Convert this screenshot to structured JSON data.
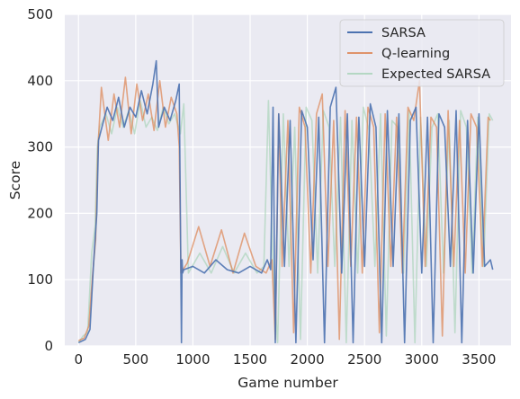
{
  "chart_data": {
    "type": "line",
    "title": "",
    "xlabel": "Game number",
    "ylabel": "Score",
    "xlim": [
      -120,
      3780
    ],
    "ylim": [
      0,
      500
    ],
    "xticks": [
      0,
      500,
      1000,
      1500,
      2000,
      2500,
      3000,
      3500
    ],
    "yticks": [
      0,
      100,
      200,
      300,
      400,
      500
    ],
    "grid": true,
    "legend_position": "top-right",
    "background": "#eaeaf2",
    "series": [
      {
        "name": "SARSA",
        "color": "#4c72b0",
        "opacity": 0.9,
        "x": [
          0,
          60,
          100,
          130,
          160,
          175,
          190,
          250,
          300,
          350,
          400,
          450,
          500,
          550,
          600,
          650,
          680,
          700,
          750,
          800,
          850,
          880,
          900,
          905,
          910,
          920,
          1000,
          1100,
          1200,
          1300,
          1400,
          1500,
          1600,
          1650,
          1680,
          1700,
          1720,
          1750,
          1800,
          1850,
          1900,
          1950,
          2000,
          2050,
          2100,
          2150,
          2200,
          2250,
          2300,
          2350,
          2400,
          2450,
          2500,
          2550,
          2600,
          2650,
          2700,
          2750,
          2800,
          2850,
          2900,
          2950,
          3000,
          3050,
          3100,
          3150,
          3200,
          3250,
          3300,
          3350,
          3400,
          3450,
          3500,
          3550,
          3600,
          3620
        ],
        "values": [
          5,
          10,
          25,
          120,
          200,
          310,
          320,
          360,
          340,
          375,
          330,
          360,
          345,
          385,
          350,
          395,
          430,
          330,
          360,
          340,
          370,
          395,
          5,
          130,
          110,
          115,
          120,
          110,
          130,
          115,
          110,
          120,
          110,
          130,
          115,
          360,
          5,
          350,
          120,
          340,
          5,
          355,
          330,
          130,
          345,
          5,
          360,
          390,
          110,
          350,
          5,
          345,
          120,
          365,
          330,
          5,
          355,
          120,
          350,
          5,
          340,
          360,
          110,
          345,
          5,
          350,
          330,
          120,
          355,
          5,
          340,
          110,
          350,
          120,
          130,
          115
        ]
      },
      {
        "name": "Q-learning",
        "color": "#dd8452",
        "opacity": 0.7,
        "x": [
          0,
          50,
          90,
          120,
          150,
          170,
          200,
          260,
          310,
          360,
          410,
          460,
          510,
          560,
          610,
          660,
          710,
          760,
          810,
          860,
          880,
          895,
          950,
          1050,
          1150,
          1250,
          1350,
          1450,
          1550,
          1640,
          1690,
          1720,
          1750,
          1780,
          1830,
          1880,
          1930,
          1980,
          2030,
          2080,
          2130,
          2180,
          2230,
          2280,
          2330,
          2380,
          2430,
          2480,
          2530,
          2580,
          2630,
          2680,
          2730,
          2780,
          2830,
          2880,
          2930,
          2980,
          3030,
          3080,
          3130,
          3180,
          3230,
          3280,
          3330,
          3380,
          3430,
          3480,
          3530,
          3580,
          3600
        ],
        "values": [
          8,
          12,
          30,
          100,
          160,
          300,
          390,
          310,
          380,
          330,
          405,
          320,
          395,
          340,
          380,
          325,
          400,
          330,
          375,
          350,
          300,
          110,
          125,
          180,
          120,
          175,
          110,
          170,
          120,
          110,
          130,
          10,
          350,
          120,
          340,
          20,
          360,
          330,
          110,
          350,
          380,
          120,
          340,
          10,
          355,
          120,
          345,
          110,
          360,
          330,
          20,
          350,
          120,
          345,
          110,
          360,
          340,
          400,
          120,
          345,
          330,
          15,
          355,
          120,
          340,
          110,
          350,
          330,
          120,
          345,
          340
        ]
      },
      {
        "name": "Expected SARSA",
        "color": "#a6d2b6",
        "opacity": 0.65,
        "x": [
          0,
          40,
          80,
          115,
          145,
          165,
          185,
          240,
          290,
          340,
          390,
          440,
          490,
          540,
          590,
          640,
          690,
          740,
          790,
          840,
          890,
          920,
          960,
          1060,
          1160,
          1260,
          1360,
          1460,
          1560,
          1620,
          1660,
          1700,
          1740,
          1790,
          1840,
          1890,
          1940,
          1990,
          2040,
          2090,
          2140,
          2190,
          2240,
          2290,
          2340,
          2390,
          2440,
          2490,
          2540,
          2590,
          2640,
          2690,
          2740,
          2790,
          2840,
          2890,
          2940,
          2990,
          3040,
          3090,
          3140,
          3190,
          3240,
          3290,
          3340,
          3390,
          3440,
          3490,
          3540,
          3590,
          3620
        ],
        "values": [
          5,
          15,
          20,
          140,
          180,
          300,
          330,
          350,
          320,
          360,
          330,
          355,
          320,
          370,
          330,
          345,
          325,
          360,
          335,
          350,
          320,
          365,
          110,
          140,
          110,
          150,
          110,
          140,
          110,
          120,
          370,
          110,
          5,
          350,
          120,
          330,
          10,
          360,
          340,
          110,
          355,
          330,
          120,
          345,
          5,
          340,
          110,
          360,
          325,
          120,
          350,
          15,
          340,
          330,
          110,
          355,
          5,
          345,
          120,
          330,
          350,
          110,
          340,
          20,
          355,
          330,
          110,
          345,
          120,
          350,
          340
        ]
      }
    ]
  }
}
